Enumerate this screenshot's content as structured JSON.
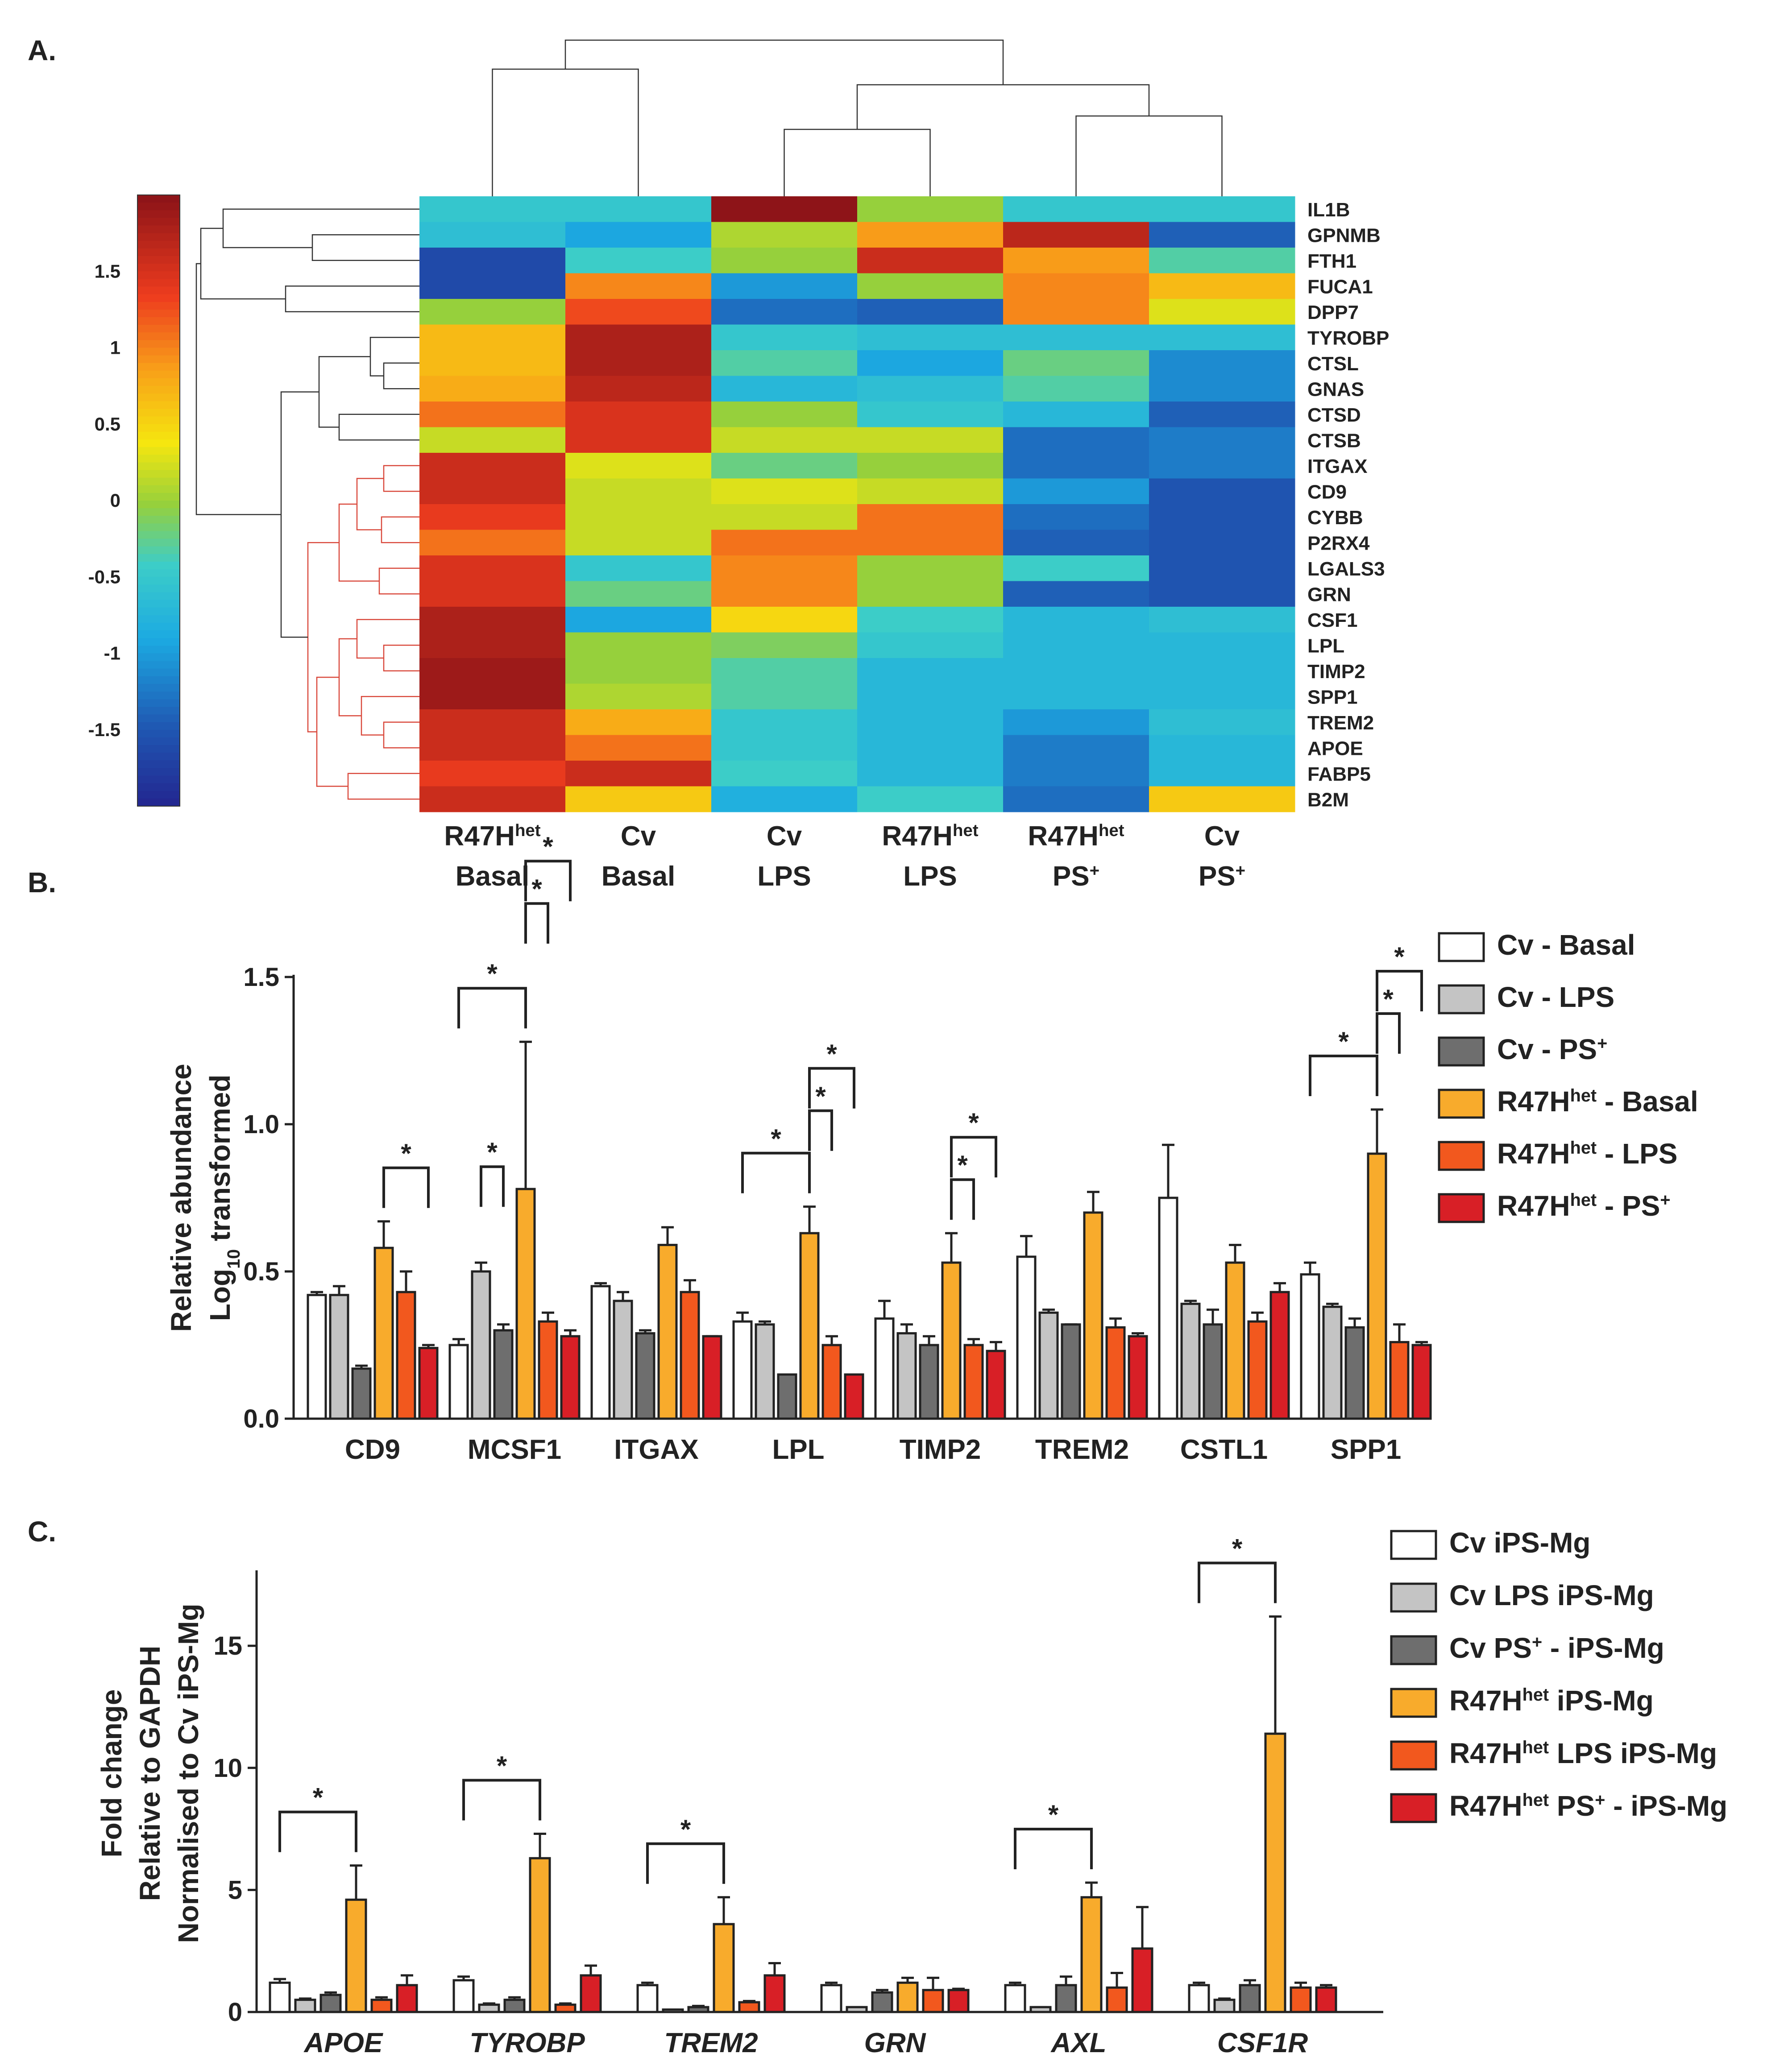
{
  "panel_labels": {
    "a": "A.",
    "b": "B.",
    "c": "C."
  },
  "chart_data": [
    {
      "type": "heatmap",
      "panel": "A.",
      "title": "",
      "colorbar_ticks": [
        "1.5",
        "1",
        "0.5",
        "0",
        "-0.5",
        "-1",
        "-1.5"
      ],
      "colorbar_values": [
        1.5,
        1,
        0.5,
        0,
        -0.5,
        -1,
        -1.5
      ],
      "range": [
        -2,
        2
      ],
      "colors": {
        "low": "#23238e",
        "mid": "#c6dc28",
        "high": "#8e1418"
      },
      "columns": [
        {
          "line1": "R47H",
          "sup": "het",
          "line2": "Basal"
        },
        {
          "line1": "Cv",
          "sup": "",
          "line2": "Basal"
        },
        {
          "line1": "Cv",
          "sup": "",
          "line2": "LPS"
        },
        {
          "line1": "R47H",
          "sup": "het",
          "line2": "LPS"
        },
        {
          "line1": "R47H",
          "sup": "het",
          "line2": "PS",
          "sup2": "+"
        },
        {
          "line1": "Cv",
          "sup": "",
          "line2": "PS",
          "sup2": "+"
        }
      ],
      "rows": [
        "IL1B",
        "GPNMB",
        "FTH1",
        "FUCA1",
        "DPP7",
        "TYROBP",
        "CTSL",
        "GNAS",
        "CTSD",
        "CTSB",
        "ITGAX",
        "CD9",
        "CYBB",
        "P2RX4",
        "LGALS3",
        "GRN",
        "CSF1",
        "LPL",
        "TIMP2",
        "SPP1",
        "TREM2",
        "APOE",
        "FABP5",
        "B2M"
      ],
      "values": [
        [
          -0.5,
          -0.5,
          2.0,
          0.0,
          -0.5,
          -0.5
        ],
        [
          -0.6,
          -0.9,
          0.1,
          0.9,
          1.7,
          -1.4
        ],
        [
          -1.6,
          -0.4,
          0.0,
          1.6,
          0.9,
          -0.3
        ],
        [
          -1.6,
          1.0,
          -1.0,
          0.0,
          1.0,
          0.7
        ],
        [
          0.0,
          1.3,
          -1.3,
          -1.4,
          1.0,
          0.3
        ],
        [
          0.7,
          1.8,
          -0.5,
          -0.6,
          -0.6,
          -0.6
        ],
        [
          0.7,
          1.8,
          -0.3,
          -0.9,
          -0.2,
          -1.1
        ],
        [
          0.8,
          1.7,
          -0.7,
          -0.6,
          -0.3,
          -1.1
        ],
        [
          1.1,
          1.5,
          0.0,
          -0.5,
          -0.7,
          -1.4
        ],
        [
          0.2,
          1.5,
          0.2,
          0.2,
          -1.3,
          -1.2
        ],
        [
          1.6,
          0.3,
          -0.2,
          0.0,
          -1.3,
          -1.2
        ],
        [
          1.6,
          0.2,
          0.3,
          0.2,
          -1.0,
          -1.5
        ],
        [
          1.4,
          0.2,
          0.2,
          1.1,
          -1.3,
          -1.5
        ],
        [
          1.1,
          0.2,
          1.1,
          1.1,
          -1.4,
          -1.5
        ],
        [
          1.5,
          -0.5,
          1.0,
          0.0,
          -0.4,
          -1.5
        ],
        [
          1.5,
          -0.2,
          1.0,
          0.0,
          -1.4,
          -1.5
        ],
        [
          1.8,
          -0.9,
          0.5,
          -0.4,
          -0.7,
          -0.6
        ],
        [
          1.8,
          0.0,
          -0.1,
          -0.5,
          -0.7,
          -0.7
        ],
        [
          1.9,
          0.0,
          -0.3,
          -0.7,
          -0.7,
          -0.7
        ],
        [
          1.9,
          0.1,
          -0.3,
          -0.7,
          -0.7,
          -0.7
        ],
        [
          1.6,
          0.8,
          -0.5,
          -0.7,
          -1.0,
          -0.6
        ],
        [
          1.6,
          1.1,
          -0.5,
          -0.7,
          -1.2,
          -0.7
        ],
        [
          1.4,
          1.6,
          -0.4,
          -0.7,
          -1.2,
          -0.7
        ],
        [
          1.6,
          0.6,
          -0.8,
          -0.4,
          -1.3,
          0.6
        ]
      ]
    },
    {
      "type": "bar",
      "panel": "B.",
      "title": "",
      "ylabel_line1": "Relative abundance",
      "ylabel_line2_pre": "Log",
      "ylabel_line2_sub": "10",
      "ylabel_line2_post": " transformed",
      "xlabel": "",
      "ylim": [
        0,
        1.5
      ],
      "yticks": [
        0.0,
        0.5,
        1.0,
        1.5
      ],
      "ytick_labels": [
        "0.0",
        "0.5",
        "1.0",
        "1.5"
      ],
      "categories": [
        "CD9",
        "MCSF1",
        "ITGAX",
        "LPL",
        "TIMP2",
        "TREM2",
        "CSTL1",
        "SPP1"
      ],
      "series": [
        {
          "name": "Cv - Basal",
          "label_main": "Cv",
          "label_sup": "",
          "label_rest": " - Basal",
          "color": "#ffffff",
          "values": [
            0.42,
            0.25,
            0.45,
            0.33,
            0.34,
            0.55,
            0.75,
            0.49
          ],
          "errors": [
            0.01,
            0.02,
            0.01,
            0.03,
            0.06,
            0.07,
            0.18,
            0.04
          ]
        },
        {
          "name": "Cv - LPS",
          "label_main": "Cv",
          "label_sup": "",
          "label_rest": " - LPS",
          "color": "#c4c4c4",
          "values": [
            0.42,
            0.5,
            0.4,
            0.32,
            0.29,
            0.36,
            0.39,
            0.38
          ],
          "errors": [
            0.03,
            0.03,
            0.03,
            0.01,
            0.03,
            0.01,
            0.01,
            0.01
          ]
        },
        {
          "name": "Cv - PS+",
          "label_main": "Cv",
          "label_sup": "",
          "label_rest": " - PS",
          "label_sup2": "+",
          "color": "#6e6e6e",
          "values": [
            0.17,
            0.3,
            0.29,
            0.15,
            0.25,
            0.32,
            0.32,
            0.31
          ],
          "errors": [
            0.01,
            0.02,
            0.01,
            0.0,
            0.03,
            0.0,
            0.05,
            0.03
          ]
        },
        {
          "name": "R47Hhet - Basal",
          "label_main": "R47H",
          "label_sup": "het",
          "label_rest": " - Basal",
          "color": "#f8ab2c",
          "values": [
            0.58,
            0.78,
            0.59,
            0.63,
            0.53,
            0.7,
            0.53,
            0.9
          ],
          "errors": [
            0.09,
            0.5,
            0.06,
            0.09,
            0.1,
            0.07,
            0.06,
            0.15
          ]
        },
        {
          "name": "R47Hhet - LPS",
          "label_main": "R47H",
          "label_sup": "het",
          "label_rest": " - LPS",
          "color": "#f2581e",
          "values": [
            0.43,
            0.33,
            0.43,
            0.25,
            0.25,
            0.31,
            0.33,
            0.26
          ],
          "errors": [
            0.07,
            0.03,
            0.04,
            0.03,
            0.02,
            0.03,
            0.03,
            0.06
          ]
        },
        {
          "name": "R47Hhet - PS+",
          "label_main": "R47H",
          "label_sup": "het",
          "label_rest": " - PS",
          "label_sup2": "+",
          "color": "#d81f26",
          "values": [
            0.24,
            0.28,
            0.28,
            0.15,
            0.23,
            0.28,
            0.43,
            0.25
          ],
          "errors": [
            0.01,
            0.02,
            0.0,
            0.0,
            0.03,
            0.01,
            0.03,
            0.01
          ]
        }
      ],
      "significance": [
        {
          "category": 0,
          "from": 3,
          "to": 5,
          "label": "*"
        },
        {
          "category": 1,
          "from": 0,
          "to": 3,
          "label": "*"
        },
        {
          "category": 1,
          "from": 1,
          "to": 2,
          "label": "*"
        },
        {
          "category": 1,
          "from": 3,
          "to": 4,
          "label": "*"
        },
        {
          "category": 1,
          "from": 3,
          "to": 5,
          "label": "*"
        },
        {
          "category": 3,
          "from": 0,
          "to": 3,
          "label": "*"
        },
        {
          "category": 3,
          "from": 3,
          "to": 4,
          "label": "*"
        },
        {
          "category": 3,
          "from": 3,
          "to": 5,
          "label": "*"
        },
        {
          "category": 4,
          "from": 3,
          "to": 4,
          "label": "*"
        },
        {
          "category": 4,
          "from": 3,
          "to": 5,
          "label": "*"
        },
        {
          "category": 7,
          "from": 0,
          "to": 3,
          "label": "*"
        },
        {
          "category": 7,
          "from": 3,
          "to": 4,
          "label": "*"
        },
        {
          "category": 7,
          "from": 3,
          "to": 5,
          "label": "*"
        }
      ]
    },
    {
      "type": "bar",
      "panel": "C.",
      "title": "",
      "ylabel_lines": [
        "Fold change",
        "Relative to GAPDH",
        "Normalised to Cv iPS-Mg"
      ],
      "xlabel": "",
      "ylim": [
        0,
        18
      ],
      "yticks": [
        0,
        5,
        10,
        15
      ],
      "ytick_labels": [
        "0",
        "5",
        "10",
        "15"
      ],
      "categories": [
        "APOE",
        "TYROBP",
        "TREM2",
        "GRN",
        "AXL",
        "CSF1R"
      ],
      "series": [
        {
          "name": "Cv iPS-Mg",
          "label_main": "Cv",
          "label_sup": "",
          "label_rest": " iPS-Mg",
          "color": "#ffffff",
          "values": [
            1.2,
            1.3,
            1.1,
            1.1,
            1.1,
            1.1
          ],
          "errors": [
            0.15,
            0.15,
            0.1,
            0.1,
            0.1,
            0.1
          ]
        },
        {
          "name": "Cv LPS iPS-Mg",
          "label_main": "Cv",
          "label_sup": "",
          "label_rest": " LPS iPS-Mg",
          "color": "#c4c4c4",
          "values": [
            0.5,
            0.3,
            0.1,
            0.2,
            0.2,
            0.5
          ],
          "errors": [
            0.05,
            0.05,
            0.0,
            0.0,
            0.0,
            0.05
          ]
        },
        {
          "name": "Cv PS+ - iPS-Mg",
          "label_main": "Cv",
          "label_sup": "",
          "label_rest": " PS",
          "label_sup2": "+",
          "label_rest2": " - iPS-Mg",
          "color": "#6e6e6e",
          "values": [
            0.7,
            0.5,
            0.2,
            0.8,
            1.1,
            1.1
          ],
          "errors": [
            0.1,
            0.1,
            0.05,
            0.1,
            0.35,
            0.2
          ]
        },
        {
          "name": "R47Hhet iPS-Mg",
          "label_main": "R47H",
          "label_sup": "het",
          "label_rest": " iPS-Mg",
          "color": "#f8ab2c",
          "values": [
            4.6,
            6.3,
            3.6,
            1.2,
            4.7,
            11.4
          ],
          "errors": [
            1.4,
            1.0,
            1.1,
            0.2,
            0.6,
            4.8
          ]
        },
        {
          "name": "R47Hhet LPS iPS-Mg",
          "label_main": "R47H",
          "label_sup": "het",
          "label_rest": " LPS iPS-Mg",
          "color": "#f2581e",
          "values": [
            0.5,
            0.3,
            0.4,
            0.9,
            1.0,
            1.0
          ],
          "errors": [
            0.1,
            0.05,
            0.05,
            0.5,
            0.6,
            0.2
          ]
        },
        {
          "name": "R47Hhet PS+ - iPS-Mg",
          "label_main": "R47H",
          "label_sup": "het",
          "label_rest": " PS",
          "label_sup2": "+",
          "label_rest2": " - iPS-Mg",
          "color": "#d81f26",
          "values": [
            1.1,
            1.5,
            1.5,
            0.9,
            2.6,
            1.0
          ],
          "errors": [
            0.4,
            0.4,
            0.5,
            0.05,
            1.7,
            0.1
          ]
        }
      ],
      "significance": [
        {
          "category": 0,
          "from": 0,
          "to": 3,
          "label": "*"
        },
        {
          "category": 1,
          "from": 0,
          "to": 3,
          "label": "*"
        },
        {
          "category": 2,
          "from": 0,
          "to": 3,
          "label": "*"
        },
        {
          "category": 4,
          "from": 0,
          "to": 3,
          "label": "*"
        },
        {
          "category": 5,
          "from": 0,
          "to": 3,
          "label": "*"
        }
      ]
    }
  ]
}
